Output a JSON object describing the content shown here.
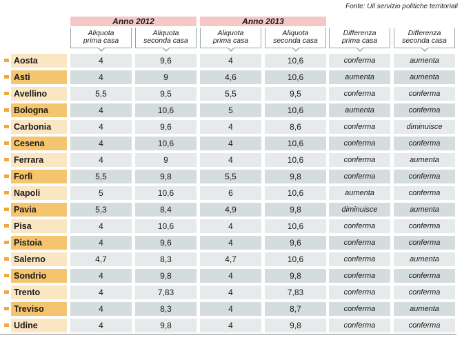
{
  "source": "Fonte: Uil servizio politiche territoriali",
  "years": [
    "Anno 2012",
    "Anno 2013"
  ],
  "headers": [
    [
      "Aliquota",
      "prima casa"
    ],
    [
      "Aliquota",
      "seconda casa"
    ],
    [
      "Aliquota",
      "prima casa"
    ],
    [
      "Aliquota",
      "seconda casa"
    ],
    [
      "Differenza",
      "prima casa"
    ],
    [
      "Differenza",
      "seconda casa"
    ]
  ],
  "rows": [
    {
      "city": "Aosta",
      "values": [
        "4",
        "9,6",
        "4",
        "10,6",
        "conferma",
        "aumenta"
      ]
    },
    {
      "city": "Asti",
      "values": [
        "4",
        "9",
        "4,6",
        "10,6",
        "aumenta",
        "aumenta"
      ]
    },
    {
      "city": "Avellino",
      "values": [
        "5,5",
        "9,5",
        "5,5",
        "9,5",
        "conferma",
        "conferma"
      ]
    },
    {
      "city": "Bologna",
      "values": [
        "4",
        "10,6",
        "5",
        "10,6",
        "aumenta",
        "conferma"
      ]
    },
    {
      "city": "Carbonia",
      "values": [
        "4",
        "9,6",
        "4",
        "8,6",
        "conferma",
        "diminuisce"
      ]
    },
    {
      "city": "Cesena",
      "values": [
        "4",
        "10,6",
        "4",
        "10,6",
        "conferma",
        "conferma"
      ]
    },
    {
      "city": "Ferrara",
      "values": [
        "4",
        "9",
        "4",
        "10,6",
        "conferma",
        "aumenta"
      ]
    },
    {
      "city": "Forlì",
      "values": [
        "5,5",
        "9,8",
        "5,5",
        "9,8",
        "conferma",
        "conferma"
      ]
    },
    {
      "city": "Napoli",
      "values": [
        "5",
        "10,6",
        "6",
        "10,6",
        "aumenta",
        "conferma"
      ]
    },
    {
      "city": "Pavia",
      "values": [
        "5,3",
        "8,4",
        "4,9",
        "9,8",
        "diminuisce",
        "aumenta"
      ]
    },
    {
      "city": "Pisa",
      "values": [
        "4",
        "10,6",
        "4",
        "10,6",
        "conferma",
        "conferma"
      ]
    },
    {
      "city": "Pistoia",
      "values": [
        "4",
        "9,6",
        "4",
        "9,6",
        "conferma",
        "conferma"
      ]
    },
    {
      "city": "Salerno",
      "values": [
        "4,7",
        "8,3",
        "4,7",
        "10,6",
        "conferma",
        "aumenta"
      ]
    },
    {
      "city": "Sondrio",
      "values": [
        "4",
        "9,8",
        "4",
        "9,8",
        "conferma",
        "conferma"
      ]
    },
    {
      "city": "Trento",
      "values": [
        "4",
        "7,83",
        "4",
        "7,83",
        "conferma",
        "conferma"
      ]
    },
    {
      "city": "Treviso",
      "values": [
        "4",
        "8,3",
        "4",
        "8,7",
        "conferma",
        "aumenta"
      ]
    },
    {
      "city": "Udine",
      "values": [
        "4",
        "9,8",
        "4",
        "9,8",
        "conferma",
        "conferma"
      ]
    }
  ]
}
